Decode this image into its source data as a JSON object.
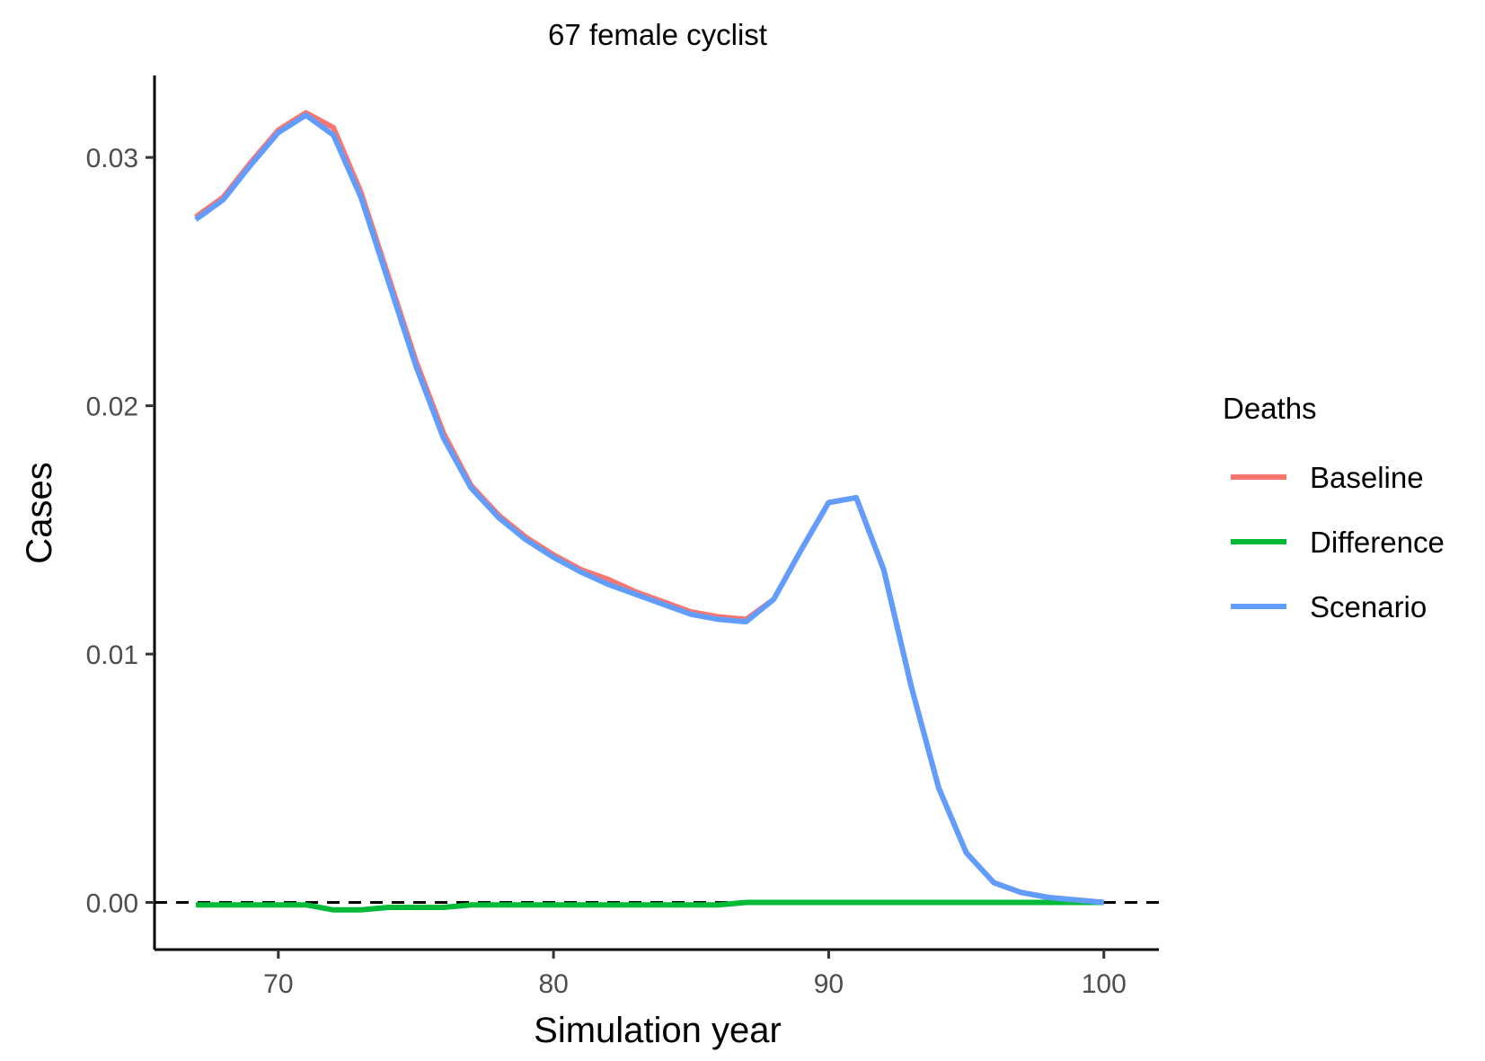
{
  "chart_data": {
    "type": "line",
    "title": "67 female cyclist",
    "xlabel": "Simulation year",
    "ylabel": "Cases",
    "xlim": [
      65.5,
      102.0
    ],
    "ylim": [
      -0.0019,
      0.0333
    ],
    "x_ticks": [
      {
        "value": 70,
        "label": "70"
      },
      {
        "value": 80,
        "label": "80"
      },
      {
        "value": 90,
        "label": "90"
      },
      {
        "value": 100,
        "label": "100"
      }
    ],
    "y_ticks": [
      {
        "value": 0.0,
        "label": "0.00"
      },
      {
        "value": 0.01,
        "label": "0.01"
      },
      {
        "value": 0.02,
        "label": "0.02"
      },
      {
        "value": 0.03,
        "label": "0.03"
      }
    ],
    "grid": false,
    "reference_line": {
      "y": 0,
      "style": "dashed",
      "color": "#000000"
    },
    "legend": {
      "title": "Deaths",
      "position": "right"
    },
    "x": [
      67,
      68,
      69,
      70,
      71,
      72,
      73,
      74,
      75,
      76,
      77,
      78,
      79,
      80,
      81,
      82,
      83,
      84,
      85,
      86,
      87,
      88,
      89,
      90,
      91,
      92,
      93,
      94,
      95,
      96,
      97,
      98,
      99,
      100
    ],
    "series": [
      {
        "name": "Baseline",
        "color": "#F8766D",
        "values": [
          0.0276,
          0.0284,
          0.0298,
          0.0311,
          0.0318,
          0.0312,
          0.0286,
          0.0252,
          0.0218,
          0.0189,
          0.0168,
          0.0156,
          0.0147,
          0.014,
          0.0134,
          0.013,
          0.0125,
          0.0121,
          0.0117,
          0.0115,
          0.0114,
          0.0122,
          0.0142,
          0.0161,
          0.0163,
          0.0134,
          0.0087,
          0.0046,
          0.002,
          0.0008,
          0.0004,
          0.0002,
          0.0001,
          0.0
        ]
      },
      {
        "name": "Difference",
        "color": "#00BA38",
        "values": [
          -0.0001,
          -0.0001,
          -0.0001,
          -0.0001,
          -0.0001,
          -0.0003,
          -0.0003,
          -0.0002,
          -0.0002,
          -0.0002,
          -0.0001,
          -0.0001,
          -0.0001,
          -0.0001,
          -0.0001,
          -0.0001,
          -0.0001,
          -0.0001,
          -0.0001,
          -0.0001,
          0.0,
          0.0,
          0.0,
          0.0,
          0.0,
          0.0,
          0.0,
          0.0,
          0.0,
          0.0,
          0.0,
          0.0,
          0.0,
          0.0
        ]
      },
      {
        "name": "Scenario",
        "color": "#619CFF",
        "values": [
          0.0275,
          0.0283,
          0.0297,
          0.031,
          0.0317,
          0.0309,
          0.0284,
          0.025,
          0.0216,
          0.0187,
          0.0167,
          0.0155,
          0.0146,
          0.0139,
          0.0133,
          0.0128,
          0.0124,
          0.012,
          0.0116,
          0.0114,
          0.0113,
          0.0122,
          0.0142,
          0.0161,
          0.0163,
          0.0134,
          0.0087,
          0.0046,
          0.002,
          0.0008,
          0.0004,
          0.0002,
          0.0001,
          0.0
        ]
      }
    ]
  }
}
